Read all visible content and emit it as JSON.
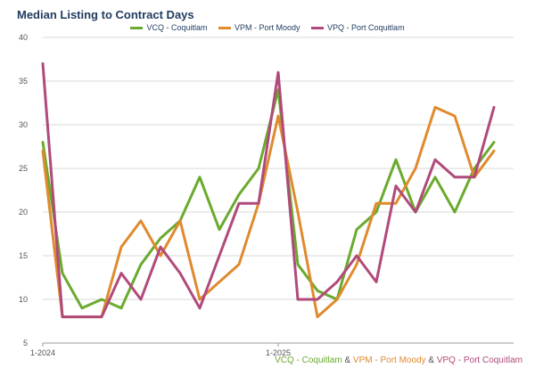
{
  "chart_data": {
    "type": "line",
    "title": "Median Listing to Contract Days",
    "xlabel": "",
    "ylabel": "",
    "ylim": [
      5,
      40
    ],
    "yticks": [
      5,
      10,
      15,
      20,
      25,
      30,
      35,
      40
    ],
    "xtick_labels": [
      {
        "label": "1-2024",
        "index": 0
      },
      {
        "label": "1-2025",
        "index": 12
      }
    ],
    "grid": true,
    "legend_position": "top",
    "series": [
      {
        "name": "VCQ - Coquitlam",
        "color": "#6aaa2e",
        "values": [
          28,
          13,
          9,
          10,
          9,
          14,
          17,
          19,
          24,
          18,
          22,
          25,
          34,
          14,
          11,
          10,
          18,
          20,
          26,
          20,
          24,
          20,
          25,
          28
        ]
      },
      {
        "name": "VPM - Port Moody",
        "color": "#e08a2e",
        "values": [
          27,
          8,
          8,
          8,
          16,
          19,
          15,
          19,
          10,
          12,
          14,
          21,
          31,
          20,
          8,
          10,
          14,
          21,
          21,
          25,
          32,
          31,
          24,
          27
        ]
      },
      {
        "name": "VPQ - Port Coquitlam",
        "color": "#b04a7a",
        "values": [
          37,
          8,
          8,
          8,
          13,
          10,
          16,
          13,
          9,
          15,
          21,
          21,
          36,
          10,
          10,
          12,
          15,
          12,
          23,
          20,
          26,
          24,
          24,
          32
        ]
      }
    ]
  },
  "footer": {
    "separator": "&"
  }
}
